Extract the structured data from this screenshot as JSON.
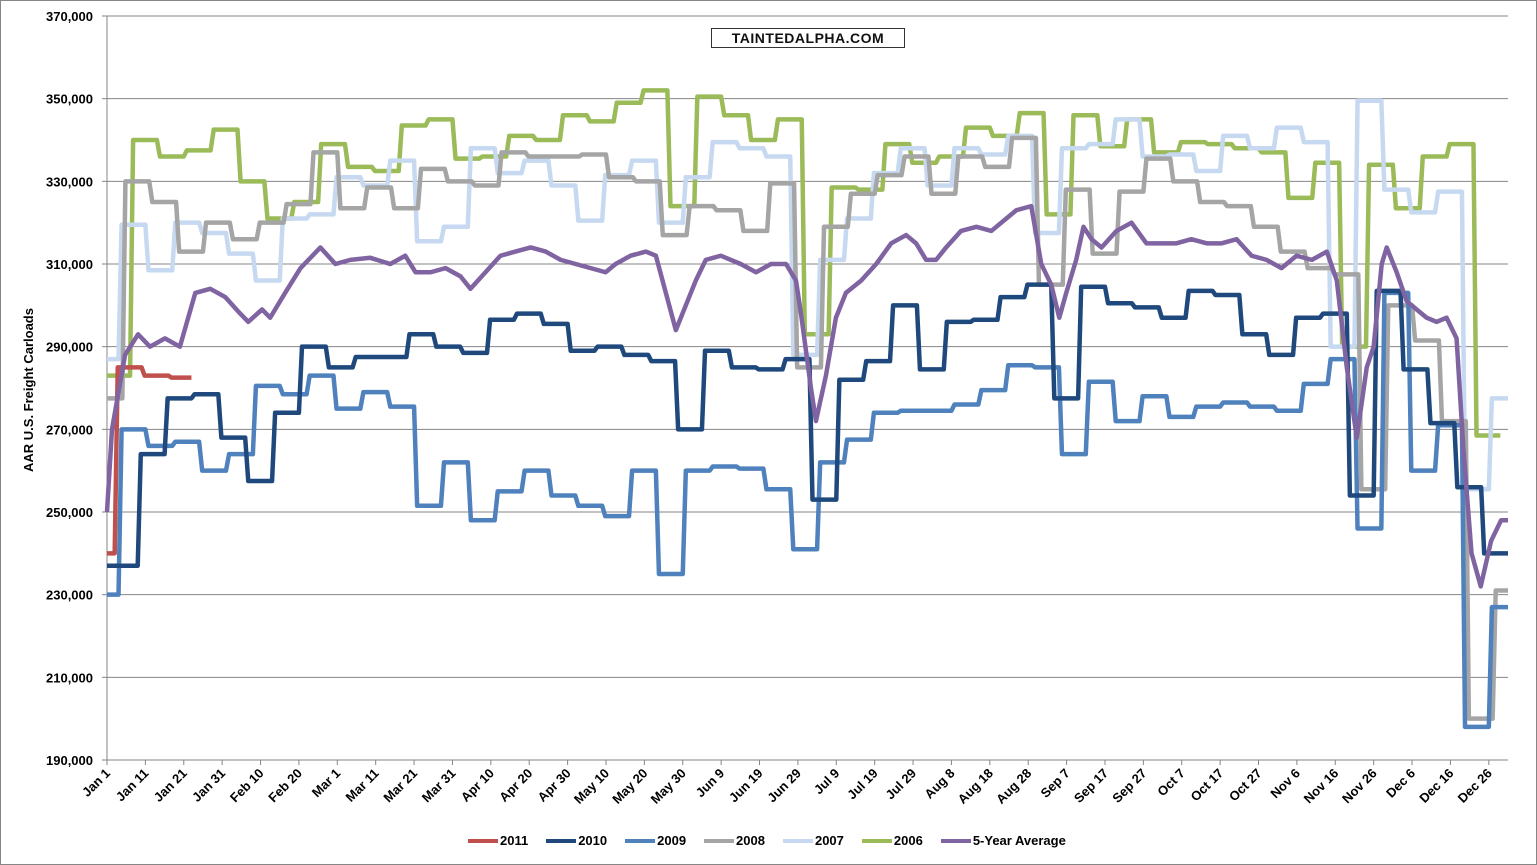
{
  "chart_data": {
    "type": "line",
    "title": "",
    "watermark": "TAINTEDALPHA.COM",
    "xlabel": "",
    "ylabel": "AAR U.S. Freight Carloads",
    "ylim": [
      190000,
      370000
    ],
    "xlim_days": [
      0,
      365
    ],
    "yticks": [
      "190,000",
      "210,000",
      "230,000",
      "250,000",
      "270,000",
      "290,000",
      "310,000",
      "330,000",
      "350,000",
      "370,000"
    ],
    "ytick_values": [
      190000,
      210000,
      230000,
      250000,
      270000,
      290000,
      310000,
      330000,
      350000,
      370000
    ],
    "xticks": [
      "Jan 1",
      "Jan 11",
      "Jan 21",
      "Jan 31",
      "Feb 10",
      "Feb 20",
      "Mar 1",
      "Mar 11",
      "Mar 21",
      "Mar 31",
      "Apr 10",
      "Apr 20",
      "Apr 30",
      "May 10",
      "May 20",
      "May 30",
      "Jun 9",
      "Jun 19",
      "Jun 29",
      "Jul 9",
      "Jul 19",
      "Jul 29",
      "Aug 8",
      "Aug 18",
      "Aug 28",
      "Sep 7",
      "Sep 17",
      "Sep 27",
      "Oct 7",
      "Oct 17",
      "Oct 27",
      "Nov 6",
      "Nov 16",
      "Nov 26",
      "Dec 6",
      "Dec 16",
      "Dec 26"
    ],
    "xtick_step_days": 10,
    "grid": true,
    "legend_position": "bottom",
    "units_note": "weekly values in thousands of carloads; values[0] spans day 0 to start_day, each later value spans 7 days",
    "series": [
      {
        "name": "2011",
        "color": "#C0504D",
        "start_day": 2,
        "end_day": 22,
        "values": [
          240,
          285,
          283,
          282.5
        ]
      },
      {
        "name": "2010",
        "color": "#1F497D",
        "start_day": 8,
        "end_day": 365,
        "values": [
          237,
          264,
          277.5,
          278.5,
          268,
          257.5,
          274,
          290,
          285,
          287.5,
          287.5,
          293,
          290,
          288.5,
          296.5,
          298,
          295.5,
          289,
          290,
          288,
          286.5,
          270,
          289,
          285,
          284.5,
          287,
          253,
          282,
          286.5,
          300,
          284.5,
          296,
          296.5,
          302,
          305,
          277.5,
          304.5,
          300.5,
          299.5,
          297,
          303.5,
          302.5,
          293,
          288,
          297,
          298,
          254,
          303.5,
          284.5,
          271.5,
          256,
          240
        ]
      },
      {
        "name": "2009",
        "color": "#4F81BD",
        "start_day": 3,
        "end_day": 365,
        "values": [
          230,
          270,
          266,
          267,
          260,
          264,
          280.5,
          278.5,
          283,
          275,
          279,
          275.5,
          251.5,
          262,
          248,
          255,
          260,
          254,
          251.5,
          249,
          260,
          235,
          260,
          261,
          260.5,
          255.5,
          241,
          262,
          267.5,
          274,
          274.5,
          274.5,
          276,
          279.5,
          285.5,
          285,
          264,
          281.5,
          272,
          278,
          273,
          275.5,
          276.5,
          275.5,
          274.5,
          281,
          287,
          246,
          303,
          260,
          271,
          198,
          227
        ]
      },
      {
        "name": "2008",
        "color": "#A5A5A5",
        "start_day": 4,
        "end_day": 365,
        "values": [
          277.5,
          330,
          325,
          313,
          320,
          316,
          320,
          324.5,
          337,
          323.5,
          328.5,
          323.5,
          333,
          330,
          329,
          337,
          336,
          336,
          336.5,
          331,
          330,
          317,
          324,
          323,
          318,
          329.5,
          285,
          319,
          327,
          331.5,
          336,
          327,
          336,
          333.5,
          340.5,
          305,
          328,
          312.5,
          327.5,
          335.5,
          330,
          325,
          324,
          319,
          313,
          309,
          307.5,
          255.5,
          300,
          291.5,
          272,
          200,
          231
        ]
      },
      {
        "name": "2007",
        "color": "#C6D9F1",
        "start_day": 3,
        "end_day": 365,
        "values": [
          287,
          319.5,
          308.5,
          320,
          317.5,
          312.5,
          306,
          321,
          322,
          331,
          329,
          335,
          315.5,
          319,
          338,
          332,
          335,
          329,
          320.5,
          331.5,
          335,
          320,
          331,
          339.5,
          338,
          336,
          288,
          311,
          321,
          332,
          338,
          329,
          338,
          336.5,
          341,
          317.5,
          338,
          339,
          345,
          336,
          336.5,
          332.5,
          341,
          338,
          343,
          339.5,
          290,
          349.5,
          328,
          322.5,
          327.5,
          255.5,
          277.5
        ]
      },
      {
        "name": "2006",
        "color": "#9BBB59",
        "start_day": 6,
        "end_day": 365,
        "values": [
          283,
          340,
          336,
          337.5,
          342.5,
          330,
          321,
          325,
          339,
          333.5,
          332.5,
          343.5,
          345,
          335.5,
          336,
          341,
          340,
          346,
          344.5,
          349,
          352,
          324,
          350.5,
          346,
          340,
          345,
          293,
          328.5,
          328,
          339,
          334.5,
          336,
          343,
          341,
          346.5,
          322,
          346,
          338.5,
          345,
          337,
          339.5,
          339,
          338,
          337,
          326,
          334.5,
          290,
          334,
          323.5,
          336,
          339,
          268.5
        ]
      }
    ],
    "average": {
      "name": "5-Year Average",
      "color": "#8064A2",
      "points": [
        [
          0,
          250
        ],
        [
          1.3,
          270
        ],
        [
          4.7,
          288
        ],
        [
          8.1,
          293
        ],
        [
          11.2,
          290
        ],
        [
          15.1,
          292
        ],
        [
          19,
          290
        ],
        [
          23,
          303
        ],
        [
          26.9,
          304
        ],
        [
          30.8,
          302
        ],
        [
          34.7,
          298
        ],
        [
          36.8,
          296
        ],
        [
          40.4,
          299
        ],
        [
          42.5,
          297
        ],
        [
          46.4,
          303
        ],
        [
          50.4,
          309
        ],
        [
          55.6,
          314
        ],
        [
          59.5,
          310
        ],
        [
          63.4,
          311
        ],
        [
          68.6,
          311.5
        ],
        [
          73.8,
          310
        ],
        [
          77.7,
          312
        ],
        [
          80.4,
          308
        ],
        [
          84.3,
          308
        ],
        [
          88.2,
          309
        ],
        [
          92.1,
          307
        ],
        [
          94.7,
          304
        ],
        [
          98.6,
          308
        ],
        [
          102.5,
          312
        ],
        [
          106.4,
          313
        ],
        [
          110.4,
          314
        ],
        [
          114.3,
          313
        ],
        [
          118.2,
          311
        ],
        [
          122.1,
          310
        ],
        [
          126,
          309
        ],
        [
          129.9,
          308
        ],
        [
          132.5,
          310
        ],
        [
          136.4,
          312
        ],
        [
          140.4,
          313
        ],
        [
          143,
          312
        ],
        [
          145.6,
          303
        ],
        [
          148.2,
          294
        ],
        [
          150.8,
          300
        ],
        [
          153.4,
          306
        ],
        [
          156,
          311
        ],
        [
          159.9,
          312
        ],
        [
          165.1,
          310
        ],
        [
          169.1,
          308
        ],
        [
          173,
          310
        ],
        [
          176.9,
          310
        ],
        [
          179.5,
          306
        ],
        [
          180.8,
          298
        ],
        [
          183.4,
          280
        ],
        [
          184.7,
          272
        ],
        [
          187.3,
          283
        ],
        [
          189.9,
          297
        ],
        [
          192.5,
          303
        ],
        [
          196.5,
          306
        ],
        [
          200.4,
          310
        ],
        [
          204.3,
          315
        ],
        [
          208.2,
          317
        ],
        [
          210.8,
          315
        ],
        [
          213.4,
          311
        ],
        [
          216,
          311
        ],
        [
          218.6,
          314
        ],
        [
          222.5,
          318
        ],
        [
          226.5,
          319
        ],
        [
          230.4,
          318
        ],
        [
          234.3,
          321
        ],
        [
          236.9,
          323
        ],
        [
          240.8,
          324
        ],
        [
          243.4,
          310
        ],
        [
          246,
          305
        ],
        [
          248.1,
          297
        ],
        [
          249.9,
          303
        ],
        [
          252.5,
          311
        ],
        [
          254.4,
          319
        ],
        [
          256.5,
          316
        ],
        [
          259.1,
          314
        ],
        [
          263,
          318
        ],
        [
          266.9,
          320
        ],
        [
          270.8,
          315
        ],
        [
          274.7,
          315
        ],
        [
          278.6,
          315
        ],
        [
          282.5,
          316
        ],
        [
          286.5,
          315
        ],
        [
          290.4,
          315
        ],
        [
          294.3,
          316
        ],
        [
          298.2,
          312
        ],
        [
          302.1,
          311
        ],
        [
          306,
          309
        ],
        [
          309.9,
          312
        ],
        [
          313.9,
          311
        ],
        [
          317.8,
          313
        ],
        [
          320.4,
          306
        ],
        [
          323,
          285
        ],
        [
          325.6,
          268
        ],
        [
          328.2,
          285
        ],
        [
          330,
          290
        ],
        [
          332.1,
          310
        ],
        [
          333.4,
          314
        ],
        [
          336,
          308
        ],
        [
          338.6,
          301
        ],
        [
          341.2,
          299
        ],
        [
          343.8,
          297
        ],
        [
          346.4,
          296
        ],
        [
          349,
          297
        ],
        [
          351.6,
          292
        ],
        [
          353.4,
          265
        ],
        [
          355.5,
          240
        ],
        [
          357.9,
          232
        ],
        [
          360.6,
          243
        ],
        [
          363.2,
          248
        ],
        [
          365,
          248
        ]
      ]
    }
  }
}
